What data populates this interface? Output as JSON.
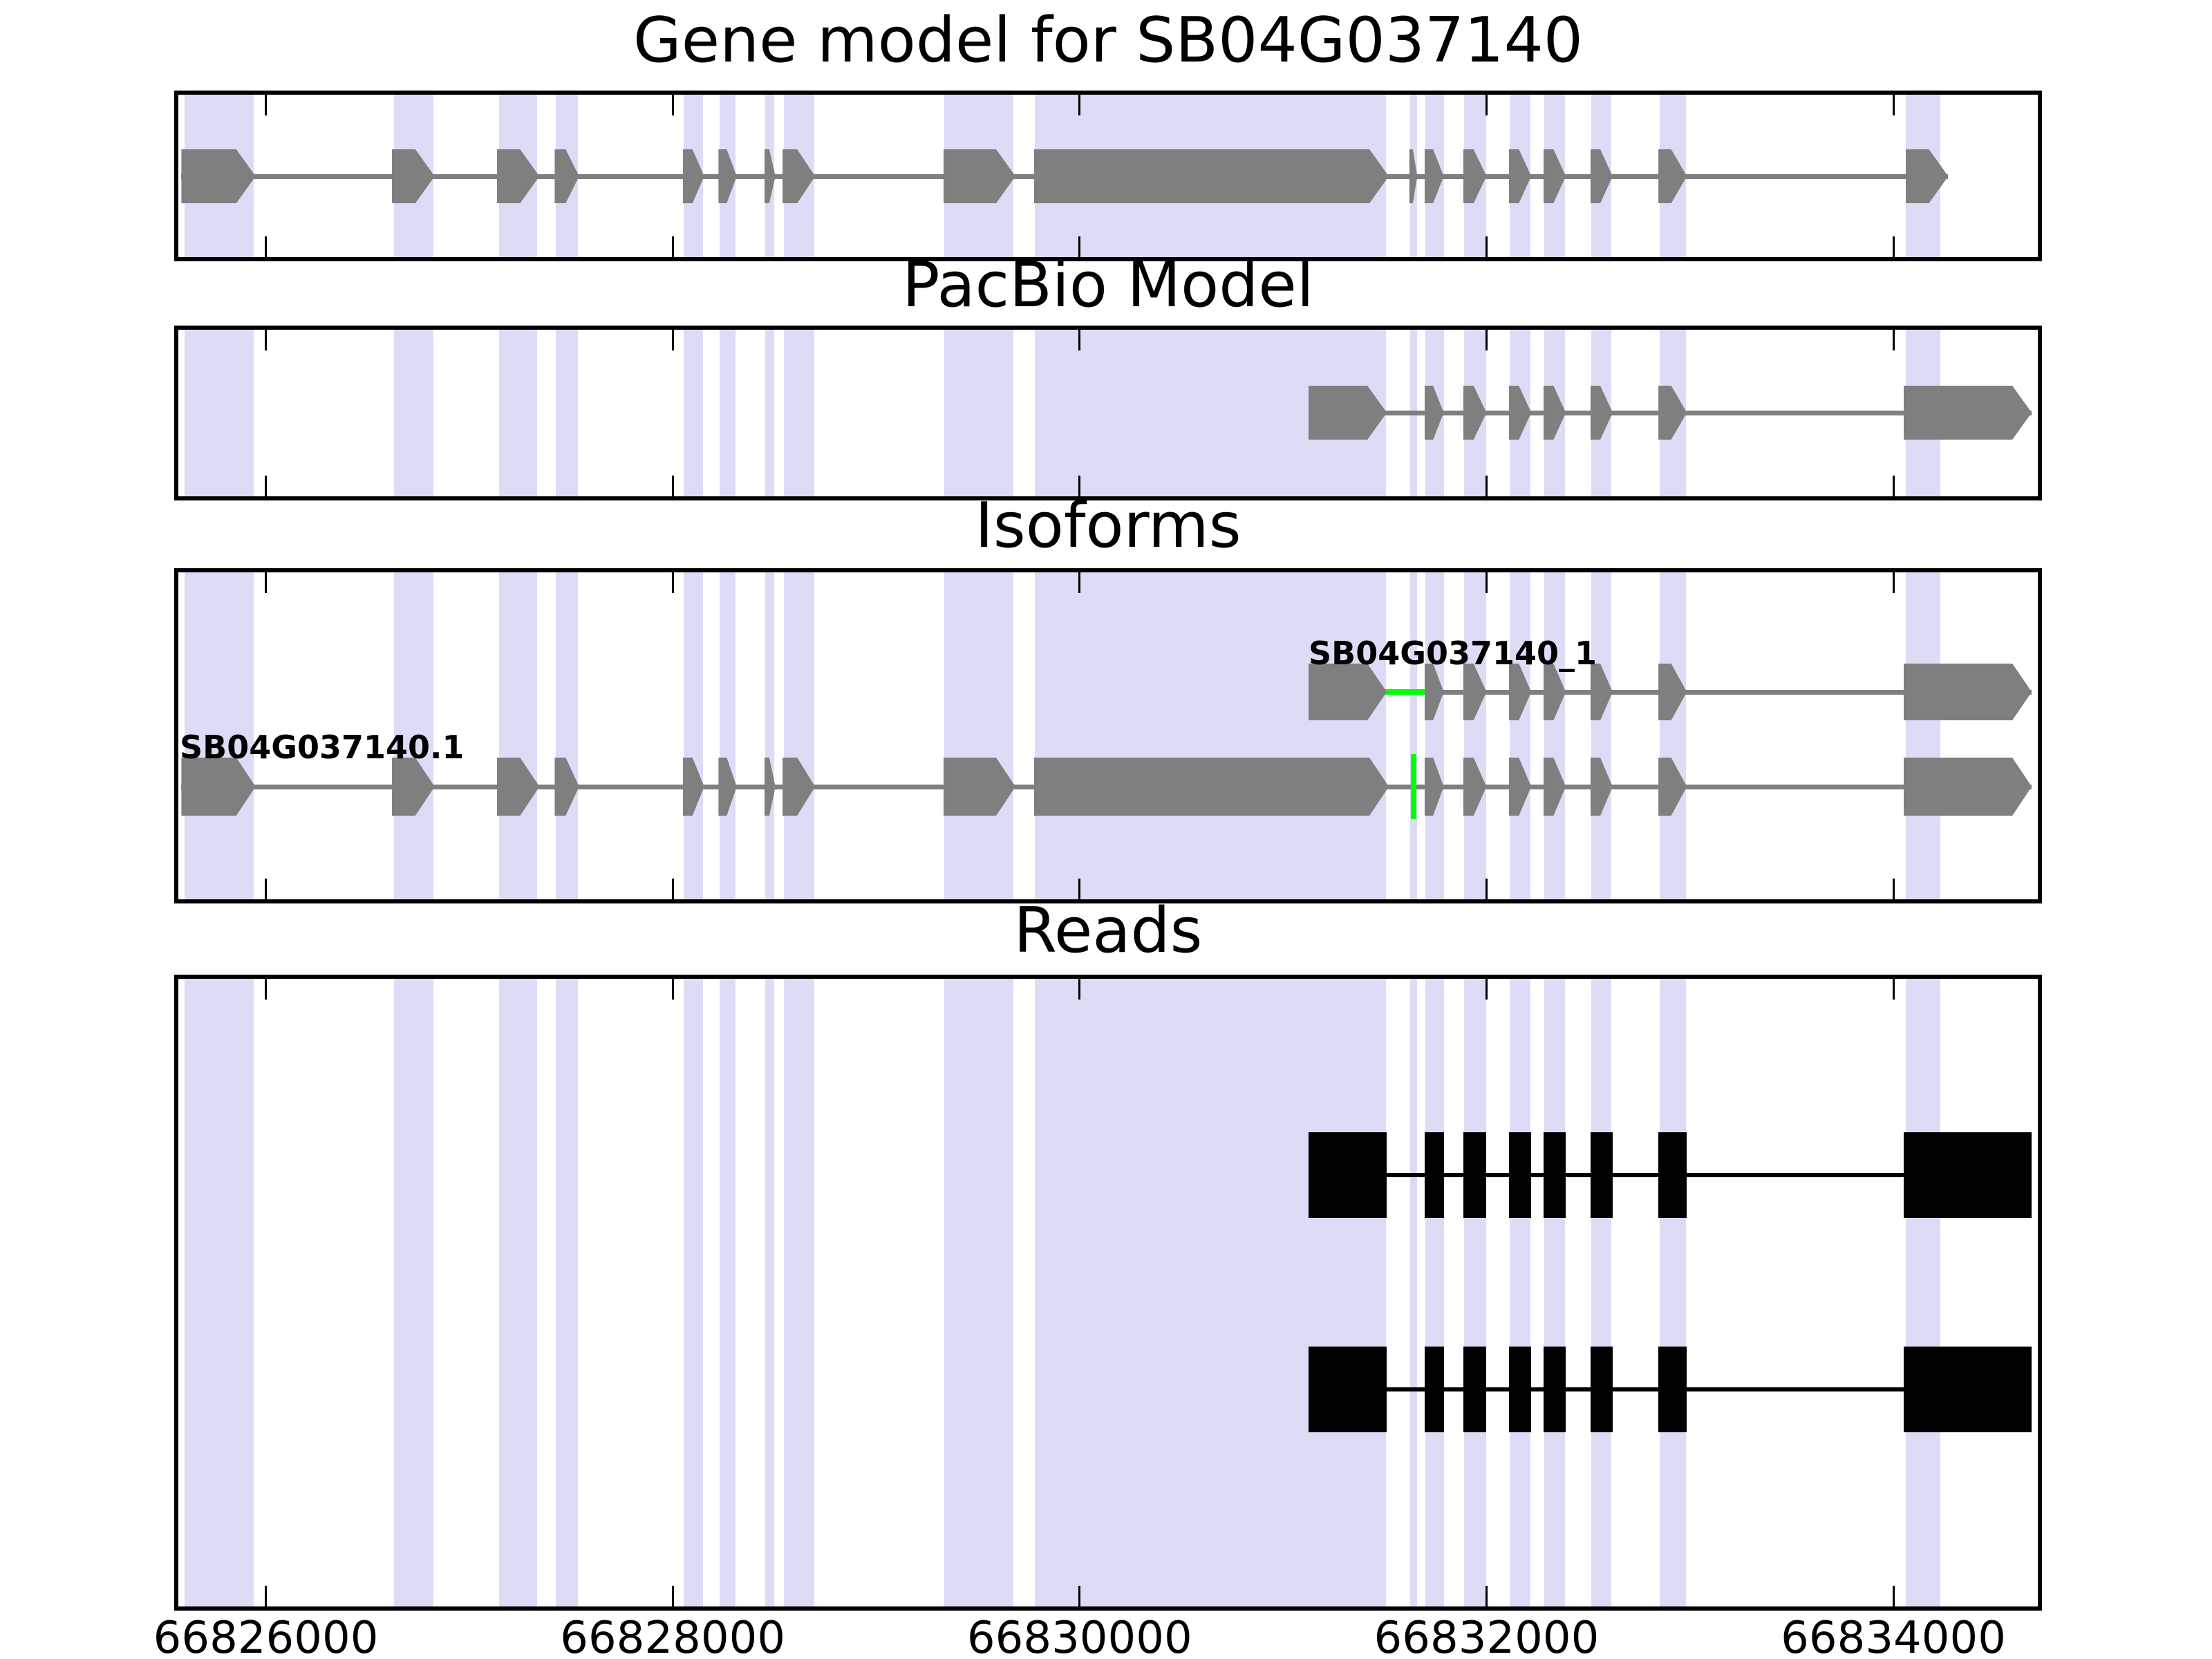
{
  "figure": {
    "title": "Gene model for SB04G037140",
    "background": "#ffffff"
  },
  "colors": {
    "exon_gray": "#7f7f7f",
    "intron_gray": "#7f7f7f",
    "read_black": "#000000",
    "band_lavender": "#dcdcf6",
    "highlight_green": "#00ff00",
    "frame_black": "#000000",
    "text_black": "#000000"
  },
  "panels": [
    {
      "name": "gene-model",
      "title": "Gene model for SB04G037140"
    },
    {
      "name": "pacbio-model",
      "title": "PacBio Model"
    },
    {
      "name": "isoforms",
      "title": "Isoforms"
    },
    {
      "name": "reads",
      "title": "Reads"
    }
  ],
  "x_axis": {
    "min": 66825570,
    "max": 66834710,
    "ticks": [
      {
        "value": 66826000,
        "label": "66826000"
      },
      {
        "value": 66828000,
        "label": "66828000"
      },
      {
        "value": 66830000,
        "label": "66830000"
      },
      {
        "value": 66832000,
        "label": "66832000"
      },
      {
        "value": 66834000,
        "label": "66834000"
      }
    ]
  },
  "highlight_bands": [
    [
      66825600,
      66825940
    ],
    [
      66826630,
      66826825
    ],
    [
      66827145,
      66827335
    ],
    [
      66827425,
      66827535
    ],
    [
      66828055,
      66828150
    ],
    [
      66828230,
      66828310
    ],
    [
      66828455,
      66828500
    ],
    [
      66828545,
      66828695
    ],
    [
      66829335,
      66829675
    ],
    [
      66829780,
      66831505
    ],
    [
      66831625,
      66831660
    ],
    [
      66831700,
      66831790
    ],
    [
      66831890,
      66832000
    ],
    [
      66832115,
      66832215
    ],
    [
      66832285,
      66832385
    ],
    [
      66832515,
      66832615
    ],
    [
      66832850,
      66832980
    ],
    [
      66834060,
      66834230
    ]
  ],
  "chart_data": {
    "type": "genomic-track-diagram",
    "title": "Gene model for SB04G037140",
    "gene_id": "SB04G037140",
    "coordinate_units": "genomic base pairs",
    "x_range": [
      66825570,
      66834710
    ],
    "x_ticks": [
      66826000,
      66828000,
      66830000,
      66832000,
      66834000
    ],
    "strand": "+",
    "legend_position": "none",
    "grid": false,
    "tracks": [
      {
        "panel": "gene-model",
        "feature": "reference gene model",
        "style": "arrow-exons",
        "color": "#7f7f7f",
        "exons": [
          [
            66825585,
            66825950
          ],
          [
            66826620,
            66826830
          ],
          [
            66827135,
            66827345
          ],
          [
            66827420,
            66827540
          ],
          [
            66828050,
            66828155
          ],
          [
            66828225,
            66828315
          ],
          [
            66828450,
            66828505
          ],
          [
            66828540,
            66828700
          ],
          [
            66829330,
            66829685
          ],
          [
            66829775,
            66831520
          ],
          [
            66831620,
            66831660
          ],
          [
            66831695,
            66831790
          ],
          [
            66831885,
            66832000
          ],
          [
            66832110,
            66832220
          ],
          [
            66832280,
            66832390
          ],
          [
            66832510,
            66832620
          ],
          [
            66832845,
            66832985
          ],
          [
            66834060,
            66834270
          ]
        ]
      },
      {
        "panel": "pacbio-model",
        "feature": "PacBio model",
        "style": "arrow-exons",
        "color": "#7f7f7f",
        "exons": [
          [
            66831125,
            66831510
          ],
          [
            66831695,
            66831790
          ],
          [
            66831885,
            66832000
          ],
          [
            66832110,
            66832220
          ],
          [
            66832280,
            66832390
          ],
          [
            66832510,
            66832620
          ],
          [
            66832845,
            66832985
          ],
          [
            66834050,
            66834680
          ]
        ]
      },
      {
        "panel": "isoforms",
        "label": "SB04G037140_1",
        "feature": "PacBio isoform SB04G037140_1",
        "style": "arrow-exons",
        "color": "#7f7f7f",
        "green_intron_segment": [
          66831460,
          66831720
        ],
        "exons": [
          [
            66831125,
            66831510
          ],
          [
            66831695,
            66831790
          ],
          [
            66831885,
            66832000
          ],
          [
            66832110,
            66832220
          ],
          [
            66832280,
            66832390
          ],
          [
            66832510,
            66832620
          ],
          [
            66832845,
            66832985
          ],
          [
            66834050,
            66834680
          ]
        ]
      },
      {
        "panel": "isoforms",
        "label": "SB04G037140.1",
        "feature": "isoform SB04G037140.1",
        "style": "arrow-exons",
        "color": "#7f7f7f",
        "green_exon_mark": [
          66831628,
          66831656
        ],
        "exons": [
          [
            66825585,
            66825950
          ],
          [
            66826620,
            66826830
          ],
          [
            66827135,
            66827345
          ],
          [
            66827420,
            66827540
          ],
          [
            66828050,
            66828155
          ],
          [
            66828225,
            66828315
          ],
          [
            66828450,
            66828505
          ],
          [
            66828540,
            66828700
          ],
          [
            66829330,
            66829685
          ],
          [
            66829775,
            66831520
          ],
          [
            66831695,
            66831790
          ],
          [
            66831885,
            66832000
          ],
          [
            66832110,
            66832220
          ],
          [
            66832280,
            66832390
          ],
          [
            66832510,
            66832620
          ],
          [
            66832845,
            66832985
          ],
          [
            66834050,
            66834680
          ]
        ]
      },
      {
        "panel": "reads",
        "feature": "read 1",
        "style": "rect-exons",
        "color": "#000000",
        "exons": [
          [
            66831125,
            66831510
          ],
          [
            66831695,
            66831790
          ],
          [
            66831885,
            66832000
          ],
          [
            66832110,
            66832220
          ],
          [
            66832280,
            66832390
          ],
          [
            66832510,
            66832620
          ],
          [
            66832845,
            66832985
          ],
          [
            66834050,
            66834680
          ]
        ]
      },
      {
        "panel": "reads",
        "feature": "read 2",
        "style": "rect-exons",
        "color": "#000000",
        "exons": [
          [
            66831125,
            66831510
          ],
          [
            66831695,
            66831790
          ],
          [
            66831885,
            66832000
          ],
          [
            66832110,
            66832220
          ],
          [
            66832280,
            66832390
          ],
          [
            66832510,
            66832620
          ],
          [
            66832845,
            66832985
          ],
          [
            66834050,
            66834680
          ]
        ]
      }
    ]
  }
}
